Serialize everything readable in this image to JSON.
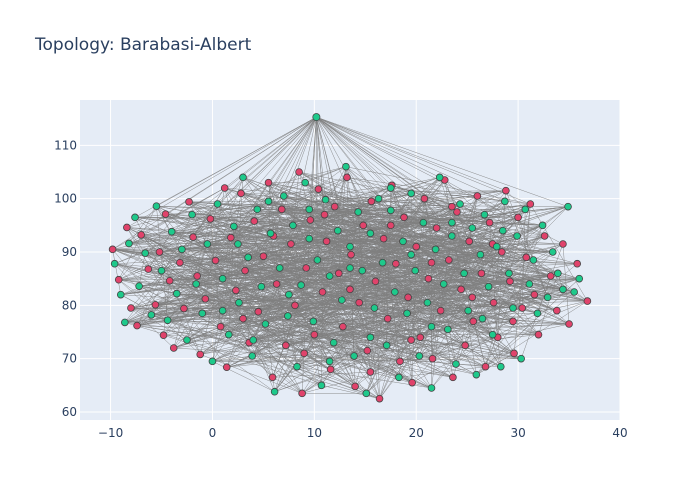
{
  "chart_data": {
    "type": "scatter",
    "title": "Topology: Barabasi-Albert",
    "xlabel": "",
    "ylabel": "",
    "xlim": [
      -13,
      40
    ],
    "ylim": [
      58.5,
      118.5
    ],
    "x_ticks": [
      -10,
      0,
      10,
      20,
      30,
      40
    ],
    "y_ticks": [
      60,
      70,
      80,
      90,
      100,
      110
    ],
    "grid": true,
    "legend": "none",
    "colors": {
      "plot_background": "#e5ecf6",
      "grid": "#ffffff",
      "edges": "#808080",
      "node_red": "#e0436b",
      "node_teal": "#1ec98b",
      "node_outline": "#444444"
    },
    "hub": {
      "x": 10.2,
      "y": 115.3
    },
    "series": [
      {
        "color": "#e0436b",
        "points": [
          [
            -9.8,
            90.5
          ],
          [
            -9.2,
            84.8
          ],
          [
            -8.4,
            94.6
          ],
          [
            -8.0,
            79.5
          ],
          [
            -7.4,
            76.2
          ],
          [
            -7.0,
            93.2
          ],
          [
            -6.3,
            86.8
          ],
          [
            -5.6,
            80.1
          ],
          [
            -5.2,
            90.0
          ],
          [
            -4.8,
            74.4
          ],
          [
            -4.6,
            97.1
          ],
          [
            -4.2,
            84.6
          ],
          [
            -3.8,
            72.0
          ],
          [
            -3.2,
            88.0
          ],
          [
            -2.8,
            79.4
          ],
          [
            -2.3,
            99.4
          ],
          [
            -1.9,
            92.8
          ],
          [
            -1.5,
            85.5
          ],
          [
            -1.2,
            70.8
          ],
          [
            -0.7,
            81.2
          ],
          [
            -0.2,
            96.2
          ],
          [
            0.3,
            88.4
          ],
          [
            0.8,
            76.0
          ],
          [
            1.4,
            68.4
          ],
          [
            1.8,
            92.7
          ],
          [
            2.3,
            82.8
          ],
          [
            2.8,
            101.0
          ],
          [
            3.2,
            86.5
          ],
          [
            3.6,
            73.0
          ],
          [
            4.1,
            95.8
          ],
          [
            4.5,
            78.8
          ],
          [
            5.0,
            89.2
          ],
          [
            5.5,
            103.0
          ],
          [
            5.9,
            66.5
          ],
          [
            6.3,
            84.0
          ],
          [
            6.8,
            98.0
          ],
          [
            7.2,
            72.5
          ],
          [
            7.7,
            91.5
          ],
          [
            8.1,
            80.0
          ],
          [
            8.5,
            105.0
          ],
          [
            8.8,
            63.5
          ],
          [
            9.2,
            87.0
          ],
          [
            9.6,
            96.0
          ],
          [
            10.0,
            74.5
          ],
          [
            10.4,
            101.8
          ],
          [
            10.8,
            82.5
          ],
          [
            11.2,
            92.0
          ],
          [
            11.6,
            68.0
          ],
          [
            12.0,
            98.5
          ],
          [
            12.4,
            86.0
          ],
          [
            12.8,
            76.0
          ],
          [
            13.2,
            104.0
          ],
          [
            13.6,
            89.5
          ],
          [
            14.0,
            64.8
          ],
          [
            14.4,
            80.5
          ],
          [
            14.8,
            95.0
          ],
          [
            15.2,
            71.5
          ],
          [
            15.6,
            99.5
          ],
          [
            16.0,
            84.5
          ],
          [
            16.4,
            62.5
          ],
          [
            16.8,
            92.5
          ],
          [
            17.2,
            77.5
          ],
          [
            17.6,
            102.5
          ],
          [
            18.0,
            87.8
          ],
          [
            18.4,
            69.5
          ],
          [
            18.8,
            96.5
          ],
          [
            19.2,
            81.5
          ],
          [
            19.6,
            65.5
          ],
          [
            20.0,
            91.0
          ],
          [
            20.4,
            74.0
          ],
          [
            20.8,
            100.0
          ],
          [
            21.2,
            85.0
          ],
          [
            21.6,
            70.0
          ],
          [
            22.0,
            94.5
          ],
          [
            22.4,
            79.0
          ],
          [
            22.8,
            103.5
          ],
          [
            23.2,
            88.5
          ],
          [
            23.6,
            66.5
          ],
          [
            24.0,
            97.5
          ],
          [
            24.4,
            83.0
          ],
          [
            24.8,
            72.5
          ],
          [
            25.2,
            92.0
          ],
          [
            25.6,
            77.0
          ],
          [
            26.0,
            100.5
          ],
          [
            26.4,
            86.0
          ],
          [
            26.8,
            68.5
          ],
          [
            27.2,
            95.5
          ],
          [
            27.6,
            80.5
          ],
          [
            28.0,
            74.0
          ],
          [
            28.4,
            90.0
          ],
          [
            28.8,
            101.5
          ],
          [
            29.2,
            84.5
          ],
          [
            29.6,
            71.0
          ],
          [
            30.0,
            96.5
          ],
          [
            30.4,
            79.5
          ],
          [
            30.8,
            89.0
          ],
          [
            31.2,
            99.0
          ],
          [
            31.6,
            82.0
          ],
          [
            32.0,
            74.5
          ],
          [
            32.6,
            93.0
          ],
          [
            33.2,
            85.5
          ],
          [
            33.8,
            79.0
          ],
          [
            34.4,
            91.5
          ],
          [
            35.0,
            76.5
          ],
          [
            35.8,
            87.8
          ],
          [
            36.8,
            80.8
          ],
          [
            1.2,
            102.0
          ],
          [
            3.0,
            77.5
          ],
          [
            6.0,
            93.0
          ],
          [
            9.0,
            71.0
          ],
          [
            11.0,
            97.0
          ],
          [
            13.5,
            83.0
          ],
          [
            15.5,
            67.5
          ],
          [
            17.5,
            95.0
          ],
          [
            19.5,
            73.5
          ],
          [
            21.5,
            88.0
          ],
          [
            23.5,
            98.5
          ],
          [
            25.5,
            81.5
          ],
          [
            27.5,
            91.5
          ],
          [
            29.5,
            77.0
          ]
        ]
      },
      {
        "color": "#1ec98b",
        "points": [
          [
            -9.6,
            87.8
          ],
          [
            -9.0,
            82.0
          ],
          [
            -8.6,
            76.8
          ],
          [
            -8.2,
            91.6
          ],
          [
            -7.6,
            96.5
          ],
          [
            -7.2,
            83.6
          ],
          [
            -6.6,
            89.8
          ],
          [
            -6.0,
            78.2
          ],
          [
            -5.5,
            98.6
          ],
          [
            -5.0,
            86.5
          ],
          [
            -4.4,
            77.2
          ],
          [
            -4.0,
            93.8
          ],
          [
            -3.5,
            82.2
          ],
          [
            -3.0,
            90.5
          ],
          [
            -2.5,
            73.5
          ],
          [
            -2.0,
            97.0
          ],
          [
            -1.6,
            84.0
          ],
          [
            -1.0,
            78.5
          ],
          [
            -0.5,
            91.5
          ],
          [
            0.0,
            69.5
          ],
          [
            0.5,
            99.0
          ],
          [
            1.0,
            85.0
          ],
          [
            1.6,
            74.5
          ],
          [
            2.1,
            94.8
          ],
          [
            2.6,
            80.5
          ],
          [
            3.0,
            104.0
          ],
          [
            3.5,
            89.0
          ],
          [
            3.9,
            70.5
          ],
          [
            4.4,
            98.0
          ],
          [
            4.8,
            83.5
          ],
          [
            5.2,
            76.5
          ],
          [
            5.7,
            93.5
          ],
          [
            6.1,
            63.8
          ],
          [
            6.6,
            87.0
          ],
          [
            7.0,
            100.5
          ],
          [
            7.4,
            78.0
          ],
          [
            7.9,
            95.0
          ],
          [
            8.3,
            68.5
          ],
          [
            8.7,
            83.8
          ],
          [
            9.1,
            103.0
          ],
          [
            9.5,
            92.5
          ],
          [
            9.9,
            77.0
          ],
          [
            10.3,
            88.5
          ],
          [
            10.7,
            65.0
          ],
          [
            11.1,
            99.8
          ],
          [
            11.5,
            85.5
          ],
          [
            11.9,
            73.0
          ],
          [
            12.3,
            94.0
          ],
          [
            12.7,
            81.0
          ],
          [
            13.1,
            106.0
          ],
          [
            13.5,
            91.0
          ],
          [
            13.9,
            70.5
          ],
          [
            14.3,
            97.5
          ],
          [
            14.7,
            86.5
          ],
          [
            15.1,
            63.5
          ],
          [
            15.5,
            93.5
          ],
          [
            15.9,
            79.5
          ],
          [
            16.3,
            100.0
          ],
          [
            16.7,
            88.0
          ],
          [
            17.1,
            72.5
          ],
          [
            17.5,
            97.8
          ],
          [
            17.9,
            82.5
          ],
          [
            18.3,
            66.5
          ],
          [
            18.7,
            92.0
          ],
          [
            19.1,
            78.5
          ],
          [
            19.5,
            101.0
          ],
          [
            19.9,
            86.5
          ],
          [
            20.3,
            70.5
          ],
          [
            20.7,
            95.5
          ],
          [
            21.1,
            80.5
          ],
          [
            21.5,
            64.5
          ],
          [
            21.9,
            90.5
          ],
          [
            22.3,
            104.0
          ],
          [
            22.7,
            84.0
          ],
          [
            23.1,
            75.5
          ],
          [
            23.5,
            93.0
          ],
          [
            23.9,
            69.0
          ],
          [
            24.3,
            99.0
          ],
          [
            24.7,
            86.0
          ],
          [
            25.1,
            79.0
          ],
          [
            25.5,
            94.5
          ],
          [
            25.9,
            67.0
          ],
          [
            26.3,
            89.5
          ],
          [
            26.7,
            97.0
          ],
          [
            27.1,
            83.5
          ],
          [
            27.5,
            74.5
          ],
          [
            27.9,
            91.0
          ],
          [
            28.3,
            68.5
          ],
          [
            28.7,
            99.5
          ],
          [
            29.1,
            86.0
          ],
          [
            29.5,
            79.5
          ],
          [
            29.9,
            93.0
          ],
          [
            30.3,
            70.0
          ],
          [
            30.7,
            98.0
          ],
          [
            31.1,
            84.0
          ],
          [
            31.5,
            88.5
          ],
          [
            31.9,
            78.5
          ],
          [
            32.4,
            95.0
          ],
          [
            32.9,
            81.5
          ],
          [
            33.4,
            90.0
          ],
          [
            33.9,
            86.0
          ],
          [
            34.4,
            83.0
          ],
          [
            34.9,
            98.5
          ],
          [
            35.5,
            82.5
          ],
          [
            36.0,
            85.0
          ],
          [
            1.0,
            79.0
          ],
          [
            2.5,
            91.5
          ],
          [
            4.0,
            73.5
          ],
          [
            5.5,
            99.5
          ],
          [
            7.5,
            82.0
          ],
          [
            9.5,
            98.0
          ],
          [
            11.5,
            69.5
          ],
          [
            13.5,
            87.0
          ],
          [
            15.5,
            74.0
          ],
          [
            17.5,
            102.0
          ],
          [
            19.5,
            89.5
          ],
          [
            21.5,
            76.0
          ],
          [
            23.5,
            95.5
          ],
          [
            26.5,
            77.5
          ],
          [
            28.5,
            94.0
          ]
        ]
      }
    ]
  }
}
